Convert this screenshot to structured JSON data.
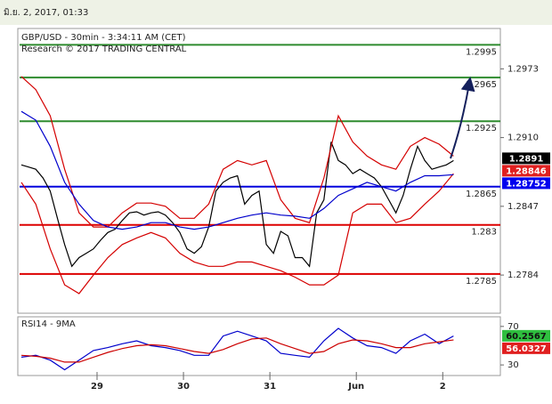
{
  "timestamp": "มิ.ย. 2, 2017, 01:33",
  "chart_data": [
    {
      "type": "line",
      "title": "GBP/USD - 30min - 3:34:11 AM (CET)",
      "subtitle": "Research © 2017 TRADING CENTRAL",
      "xlim": [
        -22,
        112
      ],
      "ylim": [
        1.2749,
        1.301
      ],
      "yticks": [
        1.2784,
        1.2847,
        {
          "value": 1.291,
          "label": "1.2910"
        },
        1.2973
      ],
      "x": [
        -21,
        -19,
        -17,
        -15,
        -13,
        -11,
        -9,
        -7,
        -5,
        -3,
        -1,
        1,
        3,
        5,
        7,
        9,
        11,
        13,
        15,
        17,
        19,
        21,
        23,
        25,
        27,
        29,
        31,
        33,
        35,
        37,
        39,
        41,
        43,
        45,
        47,
        49,
        51,
        53,
        55,
        57,
        59,
        61,
        63,
        65,
        67,
        69,
        71,
        73,
        75,
        77,
        79,
        81,
        83,
        85,
        87,
        89,
        91,
        93,
        95,
        97,
        99
      ],
      "series": [
        {
          "color": "#000000",
          "values": [
            1.2885,
            1.2883,
            1.2881,
            1.2873,
            1.2861,
            1.2836,
            1.2812,
            1.2792,
            1.28,
            1.2804,
            1.2808,
            1.2816,
            1.2823,
            1.2826,
            1.2834,
            1.2841,
            1.2842,
            1.2839,
            1.2841,
            1.2842,
            1.2839,
            1.2832,
            1.2823,
            1.2808,
            1.2804,
            1.281,
            1.2828,
            1.2861,
            1.2869,
            1.2873,
            1.2875,
            1.2849,
            1.2857,
            1.2861,
            1.2812,
            1.2804,
            1.2824,
            1.282,
            1.28,
            1.28,
            1.2792,
            1.2841,
            1.2853,
            1.2906,
            1.2889,
            1.2885,
            1.2877,
            1.2881,
            1.2877,
            1.2873,
            1.2865,
            1.2853,
            1.2841,
            1.2857,
            1.2881,
            1.2902,
            1.2889,
            1.2881,
            1.2883,
            1.2885,
            1.2889
          ]
        },
        {
          "color": "#d40000",
          "x": [
            -21,
            -17,
            -13,
            -9,
            -5,
            -1,
            3,
            7,
            11,
            15,
            19,
            23,
            27,
            31,
            35,
            39,
            43,
            47,
            51,
            55,
            59,
            63,
            67,
            71,
            75,
            79,
            83,
            87,
            91,
            95,
            99
          ],
          "values": [
            1.2966,
            1.2954,
            1.293,
            1.2881,
            1.2841,
            1.2828,
            1.2828,
            1.2841,
            1.285,
            1.285,
            1.2847,
            1.2836,
            1.2836,
            1.2849,
            1.2881,
            1.2889,
            1.2885,
            1.2889,
            1.2853,
            1.2836,
            1.2832,
            1.2873,
            1.293,
            1.2906,
            1.2893,
            1.2885,
            1.2881,
            1.2902,
            1.291,
            1.2904,
            1.2893
          ]
        },
        {
          "color": "#d40000",
          "x": [
            -21,
            -17,
            -13,
            -9,
            -5,
            -1,
            3,
            7,
            11,
            15,
            19,
            23,
            27,
            31,
            35,
            39,
            43,
            47,
            51,
            55,
            59,
            63,
            67,
            71,
            75,
            79,
            83,
            87,
            91,
            95,
            99
          ],
          "values": [
            1.2869,
            1.2849,
            1.2808,
            1.2775,
            1.2767,
            1.2784,
            1.28,
            1.2812,
            1.2818,
            1.2823,
            1.2818,
            1.2804,
            1.2796,
            1.2792,
            1.2792,
            1.2796,
            1.2796,
            1.2792,
            1.2788,
            1.2782,
            1.2775,
            1.2775,
            1.2784,
            1.2841,
            1.2849,
            1.2849,
            1.2832,
            1.2836,
            1.2849,
            1.2861,
            1.2877
          ]
        },
        {
          "color": "#0000cc",
          "x": [
            -21,
            -17,
            -13,
            -9,
            -5,
            -1,
            3,
            7,
            11,
            15,
            19,
            23,
            27,
            31,
            35,
            39,
            43,
            47,
            51,
            55,
            59,
            63,
            67,
            71,
            75,
            79,
            83,
            87,
            91,
            95,
            99
          ],
          "values": [
            1.2934,
            1.2926,
            1.2902,
            1.2869,
            1.2849,
            1.2834,
            1.2828,
            1.2826,
            1.2828,
            1.2832,
            1.2832,
            1.2828,
            1.2826,
            1.2828,
            1.2832,
            1.2836,
            1.2839,
            1.2841,
            1.2839,
            1.2838,
            1.2836,
            1.2845,
            1.2857,
            1.2863,
            1.2869,
            1.2865,
            1.2861,
            1.2869,
            1.2875,
            1.2875,
            1.2876
          ]
        }
      ],
      "levels": [
        {
          "value": 1.2995,
          "color": "#2e8b2e"
        },
        {
          "value": 1.2965,
          "color": "#2e8b2e"
        },
        {
          "value": 1.2925,
          "color": "#2e8b2e"
        },
        {
          "value": 1.2865,
          "color": "#0000dd"
        },
        {
          "value": 1.283,
          "color": "#dd0000"
        },
        {
          "value": 1.2785,
          "color": "#dd0000"
        }
      ],
      "markers": [
        {
          "value": 1.2891,
          "color": "#000000"
        },
        {
          "value": 1.28846,
          "color": "#e02020"
        },
        {
          "value": 1.28752,
          "color": "#0000ee"
        }
      ]
    },
    {
      "type": "line",
      "title": "RSI14 - 9MA",
      "xlim": [
        -22,
        112
      ],
      "ylim": [
        19,
        80
      ],
      "yticks": [
        30,
        70
      ],
      "xticks": [
        {
          "value": 0,
          "label": "29"
        },
        {
          "value": 24,
          "label": "30"
        },
        {
          "value": 48,
          "label": "31"
        },
        {
          "value": 72,
          "label": "Jun"
        },
        {
          "value": 96,
          "label": "2"
        }
      ],
      "x": [
        -21,
        -17,
        -13,
        -9,
        -5,
        -1,
        3,
        7,
        11,
        15,
        19,
        23,
        27,
        31,
        35,
        39,
        43,
        47,
        51,
        55,
        59,
        63,
        67,
        71,
        75,
        79,
        83,
        87,
        91,
        95,
        99
      ],
      "series": [
        {
          "color": "#0000cc",
          "values": [
            38,
            40,
            35,
            25,
            35,
            45,
            48,
            52,
            55,
            50,
            48,
            45,
            40,
            40,
            60,
            65,
            60,
            55,
            42,
            40,
            38,
            55,
            68,
            58,
            50,
            48,
            42,
            55,
            62,
            52,
            60
          ]
        },
        {
          "color": "#cc0000",
          "values": [
            40,
            39,
            37,
            33,
            33,
            38,
            43,
            47,
            50,
            51,
            50,
            47,
            44,
            42,
            46,
            52,
            57,
            58,
            52,
            47,
            42,
            44,
            52,
            56,
            55,
            52,
            48,
            48,
            52,
            54,
            56
          ]
        }
      ],
      "markers": [
        {
          "value": 60.2567,
          "color": "#2fbf3f"
        },
        {
          "value": 56.0327,
          "color": "#e02020"
        }
      ]
    }
  ]
}
